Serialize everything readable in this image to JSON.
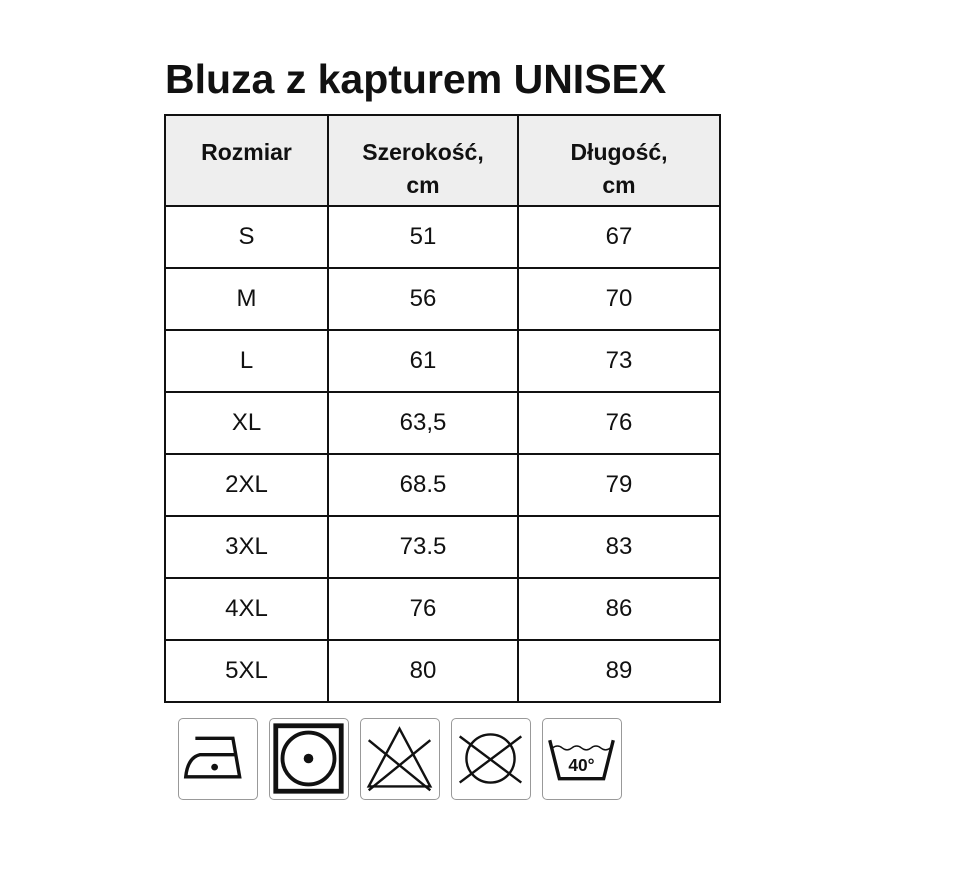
{
  "title": "Bluza z kapturem UNISEX",
  "table": {
    "headers": [
      [
        "Rozmiar",
        ""
      ],
      [
        "Szerokość,",
        "cm"
      ],
      [
        "Długość,",
        "cm"
      ]
    ],
    "rows": [
      [
        "S",
        "51",
        "67"
      ],
      [
        "M",
        "56",
        "70"
      ],
      [
        "L",
        "61",
        "73"
      ],
      [
        "XL",
        "63,5",
        "76"
      ],
      [
        "2XL",
        "68.5",
        "79"
      ],
      [
        "3XL",
        "73.5",
        "83"
      ],
      [
        "4XL",
        "76",
        "86"
      ],
      [
        "5XL",
        "80",
        "89"
      ]
    ]
  },
  "care_icons": [
    {
      "name": "iron-low-temp-icon"
    },
    {
      "name": "tumble-dry-icon"
    },
    {
      "name": "do-not-bleach-icon"
    },
    {
      "name": "do-not-dry-clean-icon"
    },
    {
      "name": "wash-40-icon",
      "label": "40°"
    }
  ]
}
